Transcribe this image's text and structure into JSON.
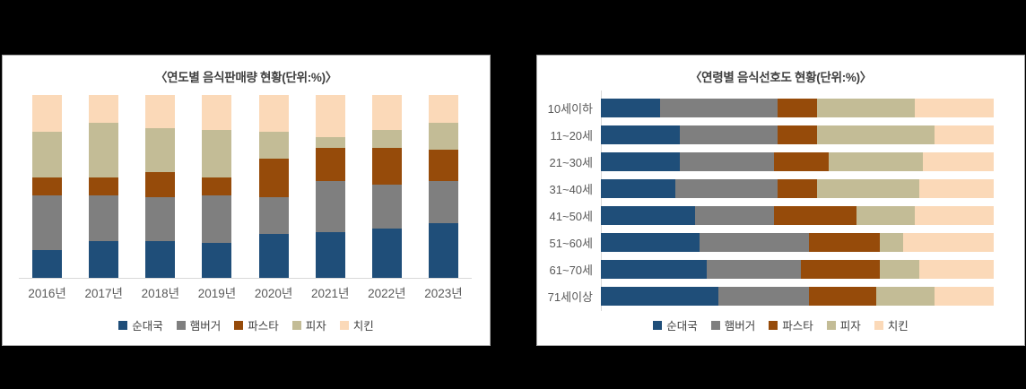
{
  "page": {
    "background": "#000000",
    "card_border": "#a6a6a6",
    "axis_color": "#d9d9d9"
  },
  "chart_data": [
    {
      "type": "bar",
      "orientation": "vertical",
      "stacked": true,
      "percent_stacked": true,
      "title": "〈연도별 음식판매량 현황(단위:%)〉",
      "categories": [
        "2016년",
        "2017년",
        "2018년",
        "2019년",
        "2020년",
        "2021년",
        "2022년",
        "2023년"
      ],
      "series": [
        {
          "name": "순대국",
          "color": "#1F4E79",
          "values": [
            15,
            20,
            20,
            19,
            24,
            25,
            27,
            30
          ]
        },
        {
          "name": "햄버거",
          "color": "#7F7F7F",
          "values": [
            30,
            25,
            24,
            26,
            20,
            28,
            24,
            23
          ]
        },
        {
          "name": "파스타",
          "color": "#964B0A",
          "values": [
            10,
            10,
            14,
            10,
            21,
            18,
            20,
            17
          ]
        },
        {
          "name": "피자",
          "color": "#C3BC96",
          "values": [
            25,
            30,
            24,
            26,
            15,
            6,
            10,
            15
          ]
        },
        {
          "name": "치킨",
          "color": "#FBD9B8",
          "values": [
            20,
            15,
            18,
            19,
            20,
            23,
            19,
            15
          ]
        }
      ],
      "ylim": [
        0,
        100
      ],
      "grid": false,
      "y_axis_labels": false,
      "legend_position": "bottom"
    },
    {
      "type": "bar",
      "orientation": "horizontal",
      "stacked": true,
      "percent_stacked": true,
      "title": "〈연령별 음식선호도 현황(단위:%)〉",
      "categories": [
        "10세이하",
        "11~20세",
        "21~30세",
        "31~40세",
        "41~50세",
        "51~60세",
        "61~70세",
        "71세이상"
      ],
      "series": [
        {
          "name": "순대국",
          "color": "#1F4E79",
          "values": [
            15,
            20,
            20,
            19,
            24,
            25,
            27,
            30
          ]
        },
        {
          "name": "햄버거",
          "color": "#7F7F7F",
          "values": [
            30,
            25,
            24,
            26,
            20,
            28,
            24,
            23
          ]
        },
        {
          "name": "파스타",
          "color": "#964B0A",
          "values": [
            10,
            10,
            14,
            10,
            21,
            18,
            20,
            17
          ]
        },
        {
          "name": "피자",
          "color": "#C3BC96",
          "values": [
            25,
            30,
            24,
            26,
            15,
            6,
            10,
            15
          ]
        },
        {
          "name": "치킨",
          "color": "#FBD9B8",
          "values": [
            20,
            15,
            18,
            19,
            20,
            23,
            19,
            15
          ]
        }
      ],
      "xlim": [
        0,
        100
      ],
      "grid": false,
      "x_axis_labels": false,
      "legend_position": "bottom"
    }
  ]
}
